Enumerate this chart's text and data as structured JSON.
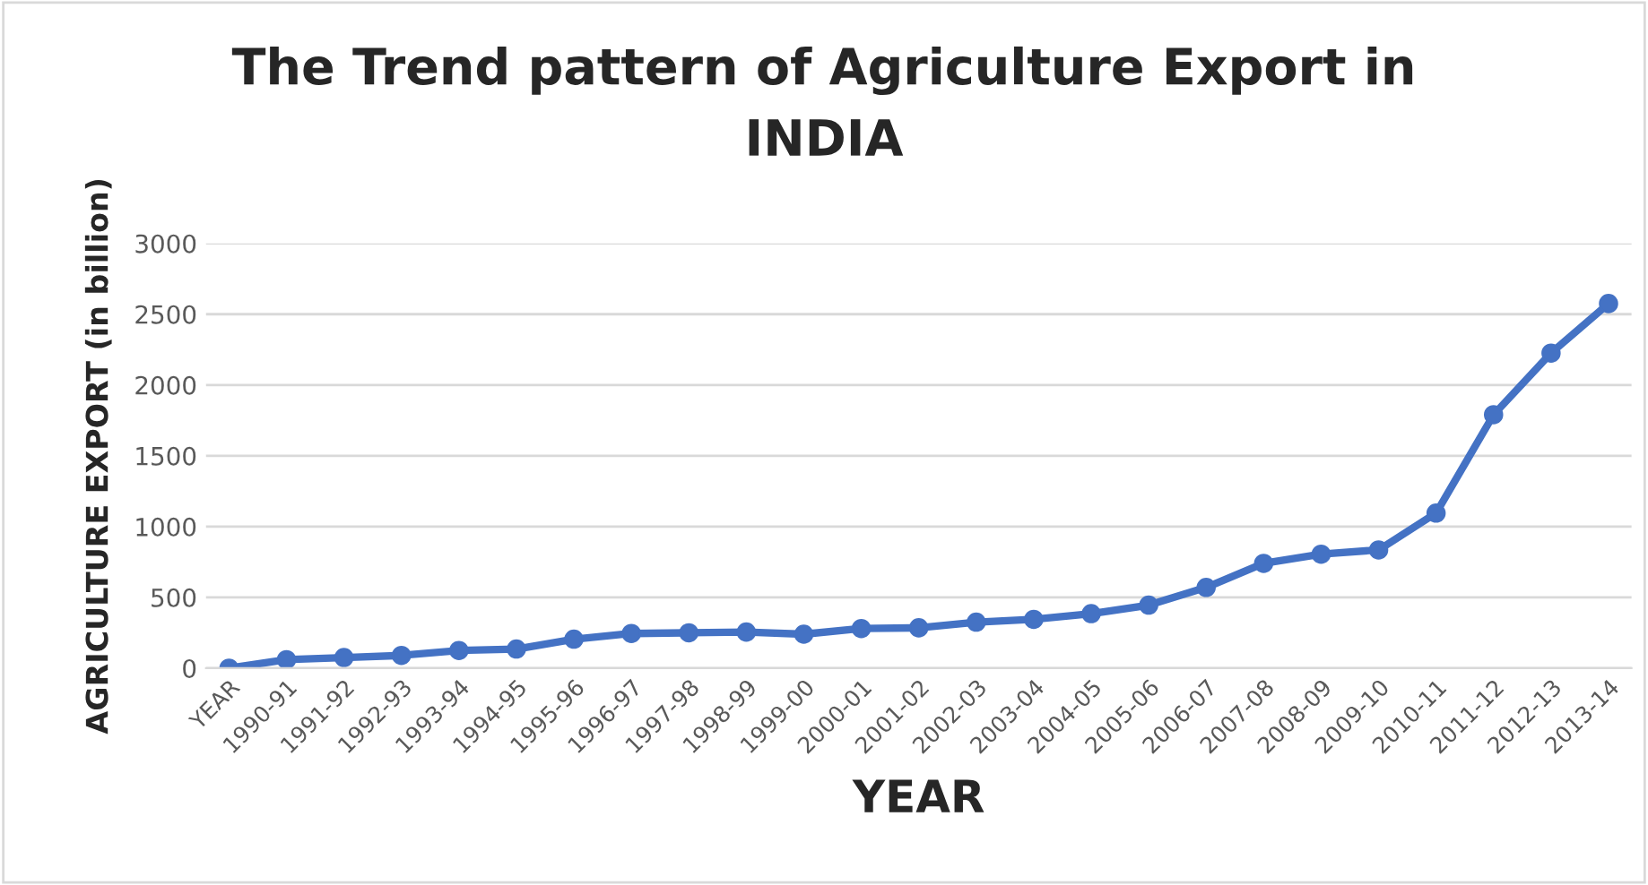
{
  "chart_data": {
    "type": "line",
    "title": "The Trend pattern of Agriculture Export in\nINDIA",
    "xlabel": "YEAR",
    "ylabel": "AGRICULTURE EXPORT (in billion)",
    "categories": [
      "YEAR",
      "1990-91",
      "1991-92",
      "1992-93",
      "1993-94",
      "1994-95",
      "1995-96",
      "1996-97",
      "1997-98",
      "1998-99",
      "1999-00",
      "2000-01",
      "2001-02",
      "2002-03",
      "2003-04",
      "2004-05",
      "2005-06",
      "2006-07",
      "2007-08",
      "2008-09",
      "2009-10",
      "2010-11",
      "2011-12",
      "2012-13",
      "2013-14"
    ],
    "series": [
      {
        "color": "#4472c4",
        "values": [
          0,
          60,
          75,
          90,
          125,
          135,
          205,
          245,
          250,
          255,
          240,
          280,
          285,
          325,
          345,
          385,
          445,
          570,
          740,
          805,
          835,
          1095,
          1790,
          2225,
          2575
        ]
      }
    ],
    "ylim": [
      0,
      3000
    ],
    "yticks": [
      0,
      500,
      1000,
      1500,
      2000,
      2500,
      3000
    ],
    "grid": "y",
    "marker": "circle",
    "line_style": "solid"
  }
}
